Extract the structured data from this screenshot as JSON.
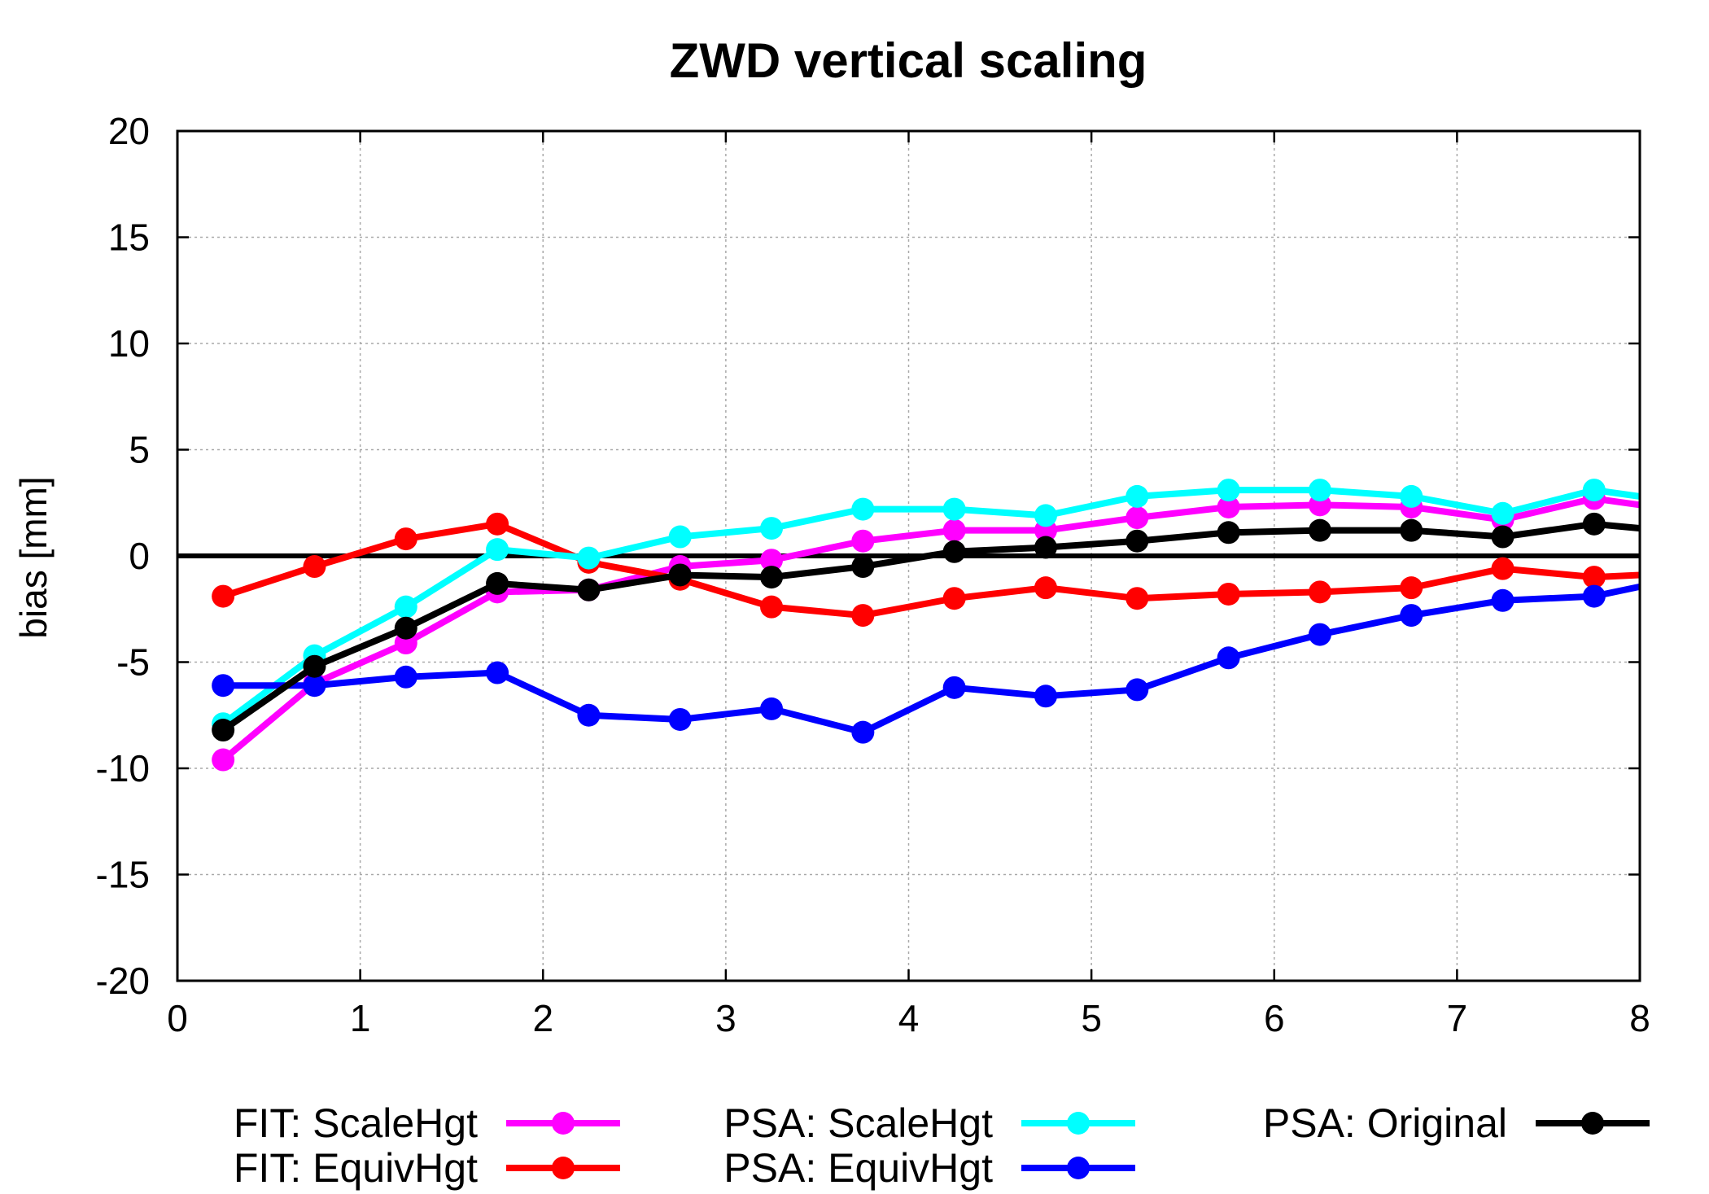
{
  "chart_data": {
    "type": "line",
    "title": "ZWD vertical scaling",
    "xlabel": "",
    "ylabel": "bias [mm]",
    "xlim": [
      0,
      8
    ],
    "ylim": [
      -20,
      20
    ],
    "xticks": [
      "0",
      "1",
      "2",
      "3",
      "4",
      "5",
      "6",
      "7",
      "8"
    ],
    "yticks": [
      "-20",
      "-15",
      "-10",
      "-5",
      "0",
      "5",
      "10",
      "15",
      "20"
    ],
    "grid": true,
    "legend_position": "bottom",
    "x": [
      0.25,
      0.75,
      1.25,
      1.75,
      2.25,
      2.75,
      3.25,
      3.75,
      4.25,
      4.75,
      5.25,
      5.75,
      6.25,
      6.75,
      7.25,
      7.75,
      8.25
    ],
    "series": [
      {
        "name": "FIT: ScaleHgt",
        "color": "#ff00ff",
        "values": [
          -9.6,
          -6.0,
          -4.1,
          -1.7,
          -1.6,
          -0.5,
          -0.2,
          0.7,
          1.2,
          1.2,
          1.8,
          2.3,
          2.4,
          2.3,
          1.7,
          2.7,
          2.1
        ]
      },
      {
        "name": "FIT: EquivHgt",
        "color": "#ff0000",
        "values": [
          -1.9,
          -0.5,
          0.8,
          1.5,
          -0.3,
          -1.1,
          -2.4,
          -2.8,
          -2.0,
          -1.5,
          -2.0,
          -1.8,
          -1.7,
          -1.5,
          -0.6,
          -1.0,
          -0.8
        ]
      },
      {
        "name": "PSA: ScaleHgt",
        "color": "#00ffff",
        "values": [
          -7.9,
          -4.7,
          -2.4,
          0.3,
          -0.1,
          0.9,
          1.3,
          2.2,
          2.2,
          1.9,
          2.8,
          3.1,
          3.1,
          2.8,
          2.0,
          3.1,
          2.5
        ]
      },
      {
        "name": "PSA: EquivHgt",
        "color": "#0000ff",
        "values": [
          -6.1,
          -6.1,
          -5.7,
          -5.5,
          -7.5,
          -7.7,
          -7.2,
          -8.3,
          -6.2,
          -6.6,
          -6.3,
          -4.8,
          -3.7,
          -2.8,
          -2.1,
          -1.9,
          -1.0
        ]
      },
      {
        "name": "PSA: Original",
        "color": "#000000",
        "values": [
          -8.2,
          -5.2,
          -3.4,
          -1.3,
          -1.6,
          -0.9,
          -1.0,
          -0.5,
          0.2,
          0.4,
          0.7,
          1.1,
          1.2,
          1.2,
          0.9,
          1.5,
          1.1
        ]
      }
    ]
  }
}
